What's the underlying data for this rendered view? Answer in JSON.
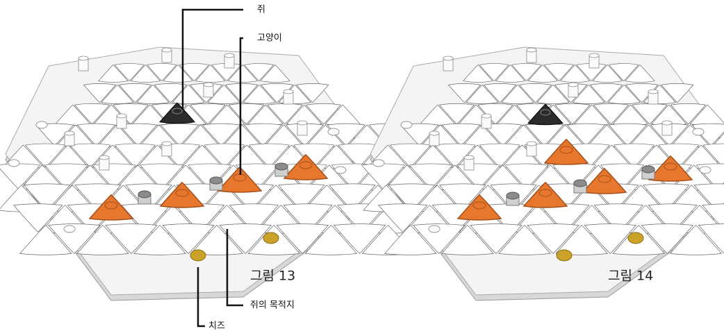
{
  "labels": {
    "mouse": "쥐",
    "cat": "고양이",
    "destination": "쥐의 목적지",
    "cheese": "치즈"
  },
  "figures": [
    {
      "caption": "그림 13"
    },
    {
      "caption": "그림 14"
    }
  ]
}
